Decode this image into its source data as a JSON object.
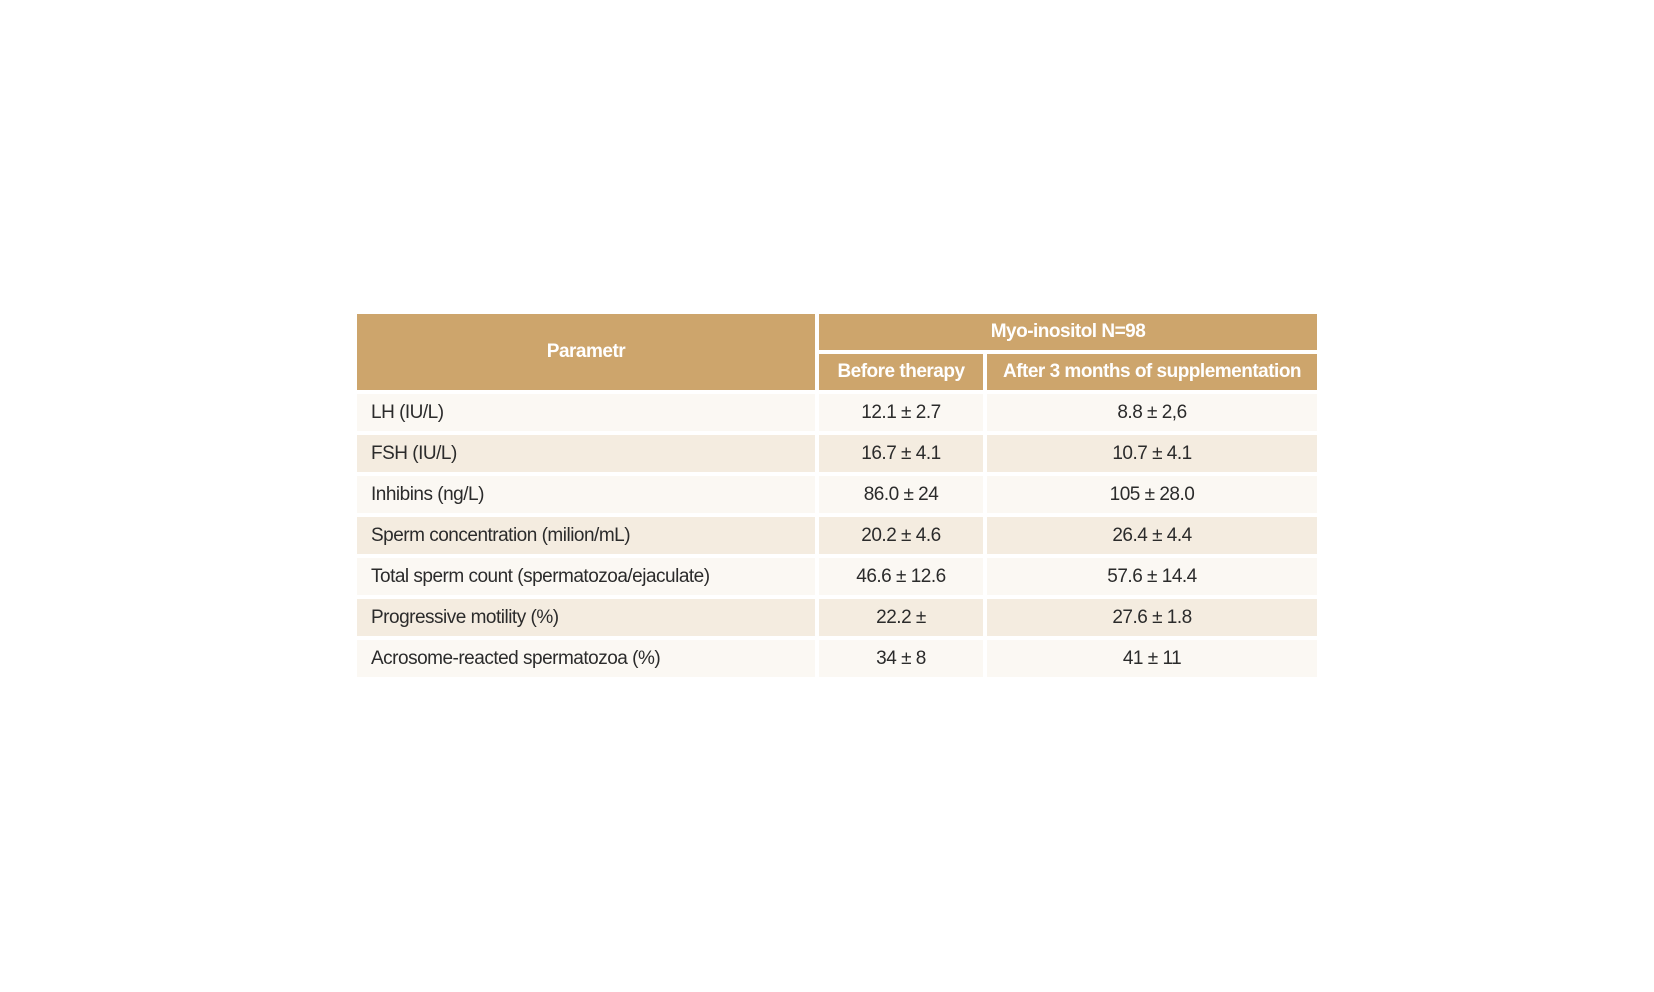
{
  "table": {
    "header": {
      "parameter": "Parametr",
      "group": "Myo-inositol N=98",
      "before": "Before therapy",
      "after": "After 3 months of supplementation"
    },
    "rows": [
      {
        "parameter": "LH (IU/L)",
        "before": "12.1 ± 2.7",
        "after": "8.8 ± 2,6"
      },
      {
        "parameter": "FSH (IU/L)",
        "before": "16.7 ± 4.1",
        "after": "10.7 ± 4.1"
      },
      {
        "parameter": "Inhibins (ng/L)",
        "before": "86.0 ± 24",
        "after": "105 ± 28.0"
      },
      {
        "parameter": "Sperm concentration (milion/mL)",
        "before": "20.2 ± 4.6",
        "after": "26.4 ± 4.4"
      },
      {
        "parameter": "Total sperm count (spermatozoa/ejaculate)",
        "before": "46.6 ± 12.6",
        "after": "57.6 ± 14.4"
      },
      {
        "parameter": "Progressive motility (%)",
        "before": "22.2 ±",
        "after": "27.6 ± 1.8"
      },
      {
        "parameter": "Acrosome-reacted spermatozoa (%)",
        "before": "34 ± 8",
        "after": "41 ± 11"
      }
    ]
  },
  "colors": {
    "header_bg": "#cda56c",
    "row_light": "#fbf8f3",
    "row_dark": "#f4ece0"
  }
}
